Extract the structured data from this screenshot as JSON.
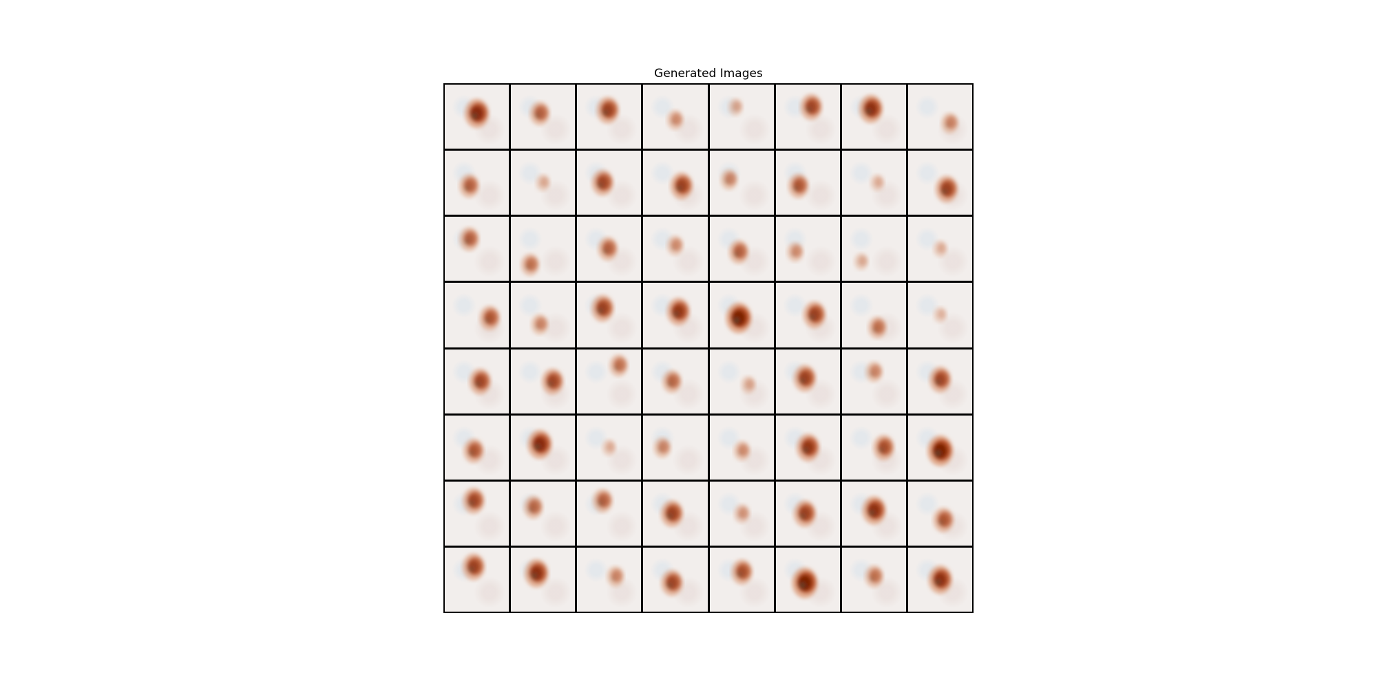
{
  "figure": {
    "title": "Generated Images"
  },
  "image_grid": {
    "rows": 8,
    "cols": 8,
    "description_note": "",
    "tiles": [
      {
        "intensity": 0.9
      },
      {
        "intensity": 0.55
      },
      {
        "intensity": 0.75
      },
      {
        "intensity": 0.3
      },
      {
        "intensity": 0.15
      },
      {
        "intensity": 0.7
      },
      {
        "intensity": 0.85
      },
      {
        "intensity": 0.35
      },
      {
        "intensity": 0.55
      },
      {
        "intensity": 0.12
      },
      {
        "intensity": 0.7
      },
      {
        "intensity": 0.75
      },
      {
        "intensity": 0.35
      },
      {
        "intensity": 0.6
      },
      {
        "intensity": 0.1
      },
      {
        "intensity": 0.75
      },
      {
        "intensity": 0.55
      },
      {
        "intensity": 0.45
      },
      {
        "intensity": 0.55
      },
      {
        "intensity": 0.3
      },
      {
        "intensity": 0.55
      },
      {
        "intensity": 0.3
      },
      {
        "intensity": 0.12
      },
      {
        "intensity": 0.1
      },
      {
        "intensity": 0.6
      },
      {
        "intensity": 0.35
      },
      {
        "intensity": 0.75
      },
      {
        "intensity": 0.8
      },
      {
        "intensity": 1.0
      },
      {
        "intensity": 0.75
      },
      {
        "intensity": 0.45
      },
      {
        "intensity": 0.05
      },
      {
        "intensity": 0.7
      },
      {
        "intensity": 0.7
      },
      {
        "intensity": 0.45
      },
      {
        "intensity": 0.5
      },
      {
        "intensity": 0.15
      },
      {
        "intensity": 0.75
      },
      {
        "intensity": 0.35
      },
      {
        "intensity": 0.7
      },
      {
        "intensity": 0.6
      },
      {
        "intensity": 0.9
      },
      {
        "intensity": 0.1
      },
      {
        "intensity": 0.35
      },
      {
        "intensity": 0.3
      },
      {
        "intensity": 0.8
      },
      {
        "intensity": 0.65
      },
      {
        "intensity": 1.0
      },
      {
        "intensity": 0.7
      },
      {
        "intensity": 0.5
      },
      {
        "intensity": 0.55
      },
      {
        "intensity": 0.75
      },
      {
        "intensity": 0.25
      },
      {
        "intensity": 0.75
      },
      {
        "intensity": 0.85
      },
      {
        "intensity": 0.6
      },
      {
        "intensity": 0.75
      },
      {
        "intensity": 0.85
      },
      {
        "intensity": 0.35
      },
      {
        "intensity": 0.7
      },
      {
        "intensity": 0.65
      },
      {
        "intensity": 1.0
      },
      {
        "intensity": 0.45
      },
      {
        "intensity": 0.85
      }
    ]
  },
  "colors": {
    "tile_background": "#f2eeec",
    "blob_core": "#7a1f05",
    "blob_mid": "#b4461a",
    "blob_edge": "#d88a60",
    "grid_border": "#000000"
  }
}
